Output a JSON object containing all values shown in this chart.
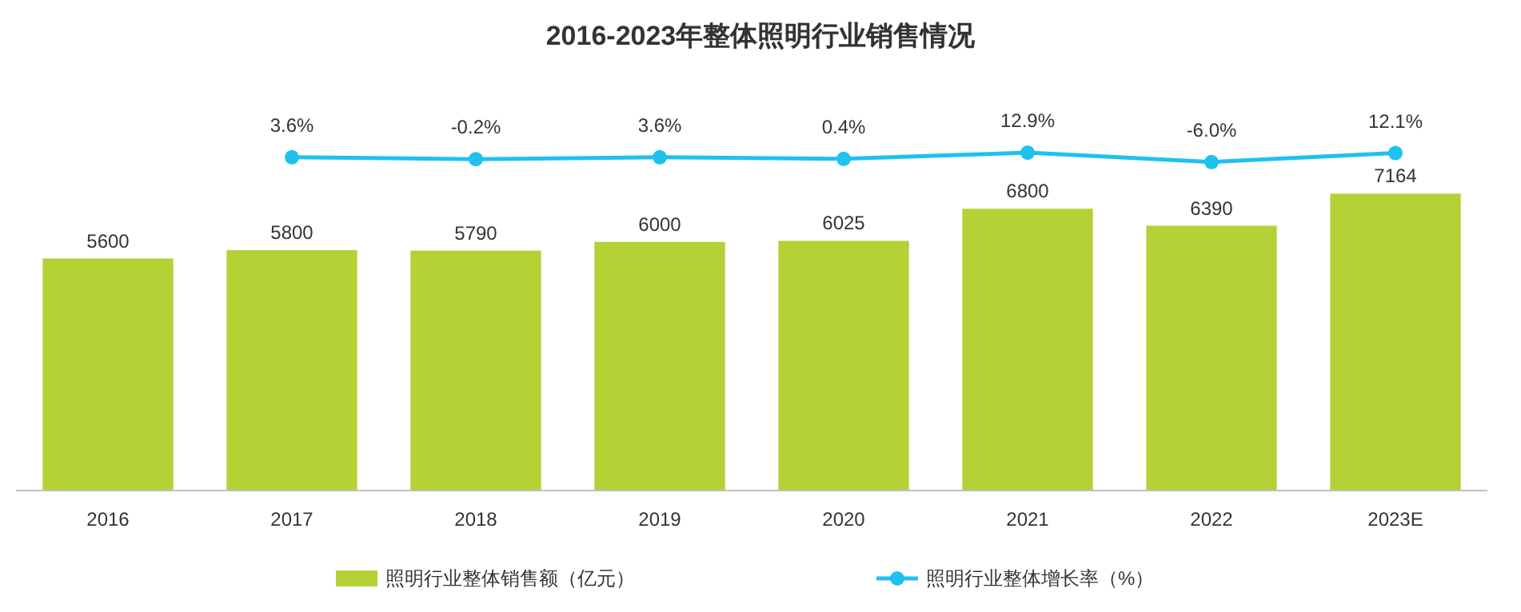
{
  "chart_data": [
    {
      "type": "bar",
      "categories": [
        "2016",
        "2017",
        "2018",
        "2019",
        "2020",
        "2021",
        "2022",
        "2023E"
      ],
      "series": [
        {
          "name": "照明行业整体销售额（亿元）",
          "color": "#b2d235",
          "values": [
            5600,
            5800,
            5790,
            6000,
            6025,
            6800,
            6390,
            7164
          ]
        }
      ],
      "tick_labels": "x",
      "data_labels": true,
      "legend": "bottom"
    },
    {
      "type": "line",
      "title": "2016-2023年整体照明行业销售情况",
      "categories": [
        null,
        null,
        null,
        null,
        null,
        null,
        null,
        null
      ],
      "series": [
        {
          "name": "照明行业整体增长率（%）",
          "color": "#1fc1ee",
          "values": [
            null,
            3.6,
            -0.2,
            3.6,
            0.4,
            12.9,
            -6.0,
            12.1
          ],
          "value_labels": [
            null,
            "3.6%",
            "-0.2%",
            "3.6%",
            "0.4%",
            "12.9%",
            "-6.0%",
            "12.1%"
          ]
        }
      ],
      "tick_labels": false,
      "data_labels": true,
      "legend": "bottom",
      "marker": "circle"
    }
  ]
}
